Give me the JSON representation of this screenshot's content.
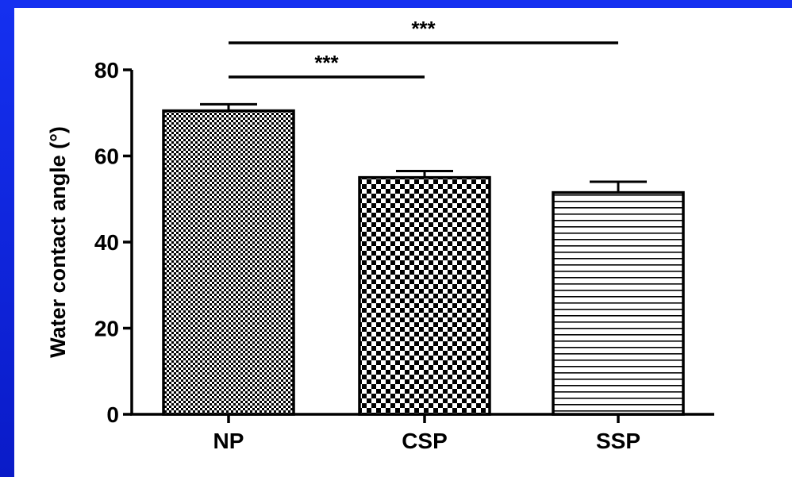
{
  "chart_data": {
    "type": "bar",
    "title": "",
    "xlabel": "",
    "ylabel": "Water contact angle (°)",
    "ylim": [
      0,
      80
    ],
    "yticks": [
      0,
      20,
      40,
      60,
      80
    ],
    "ytick_labels": [
      "0",
      "20",
      "40",
      "60",
      "80"
    ],
    "categories": [
      "NP",
      "CSP",
      "SSP"
    ],
    "values": [
      70.5,
      55,
      51.5
    ],
    "errors": [
      1.5,
      1.5,
      2.5
    ],
    "patterns": [
      "fine-checker",
      "coarse-checker",
      "horizontal-lines"
    ],
    "grid": false,
    "significance": [
      {
        "from": "NP",
        "to": "SSP",
        "label": "***"
      },
      {
        "from": "NP",
        "to": "CSP",
        "label": "***"
      }
    ]
  },
  "colors": {
    "background": "#0b1fd9",
    "panel": "#ffffff",
    "ink": "#000000"
  }
}
